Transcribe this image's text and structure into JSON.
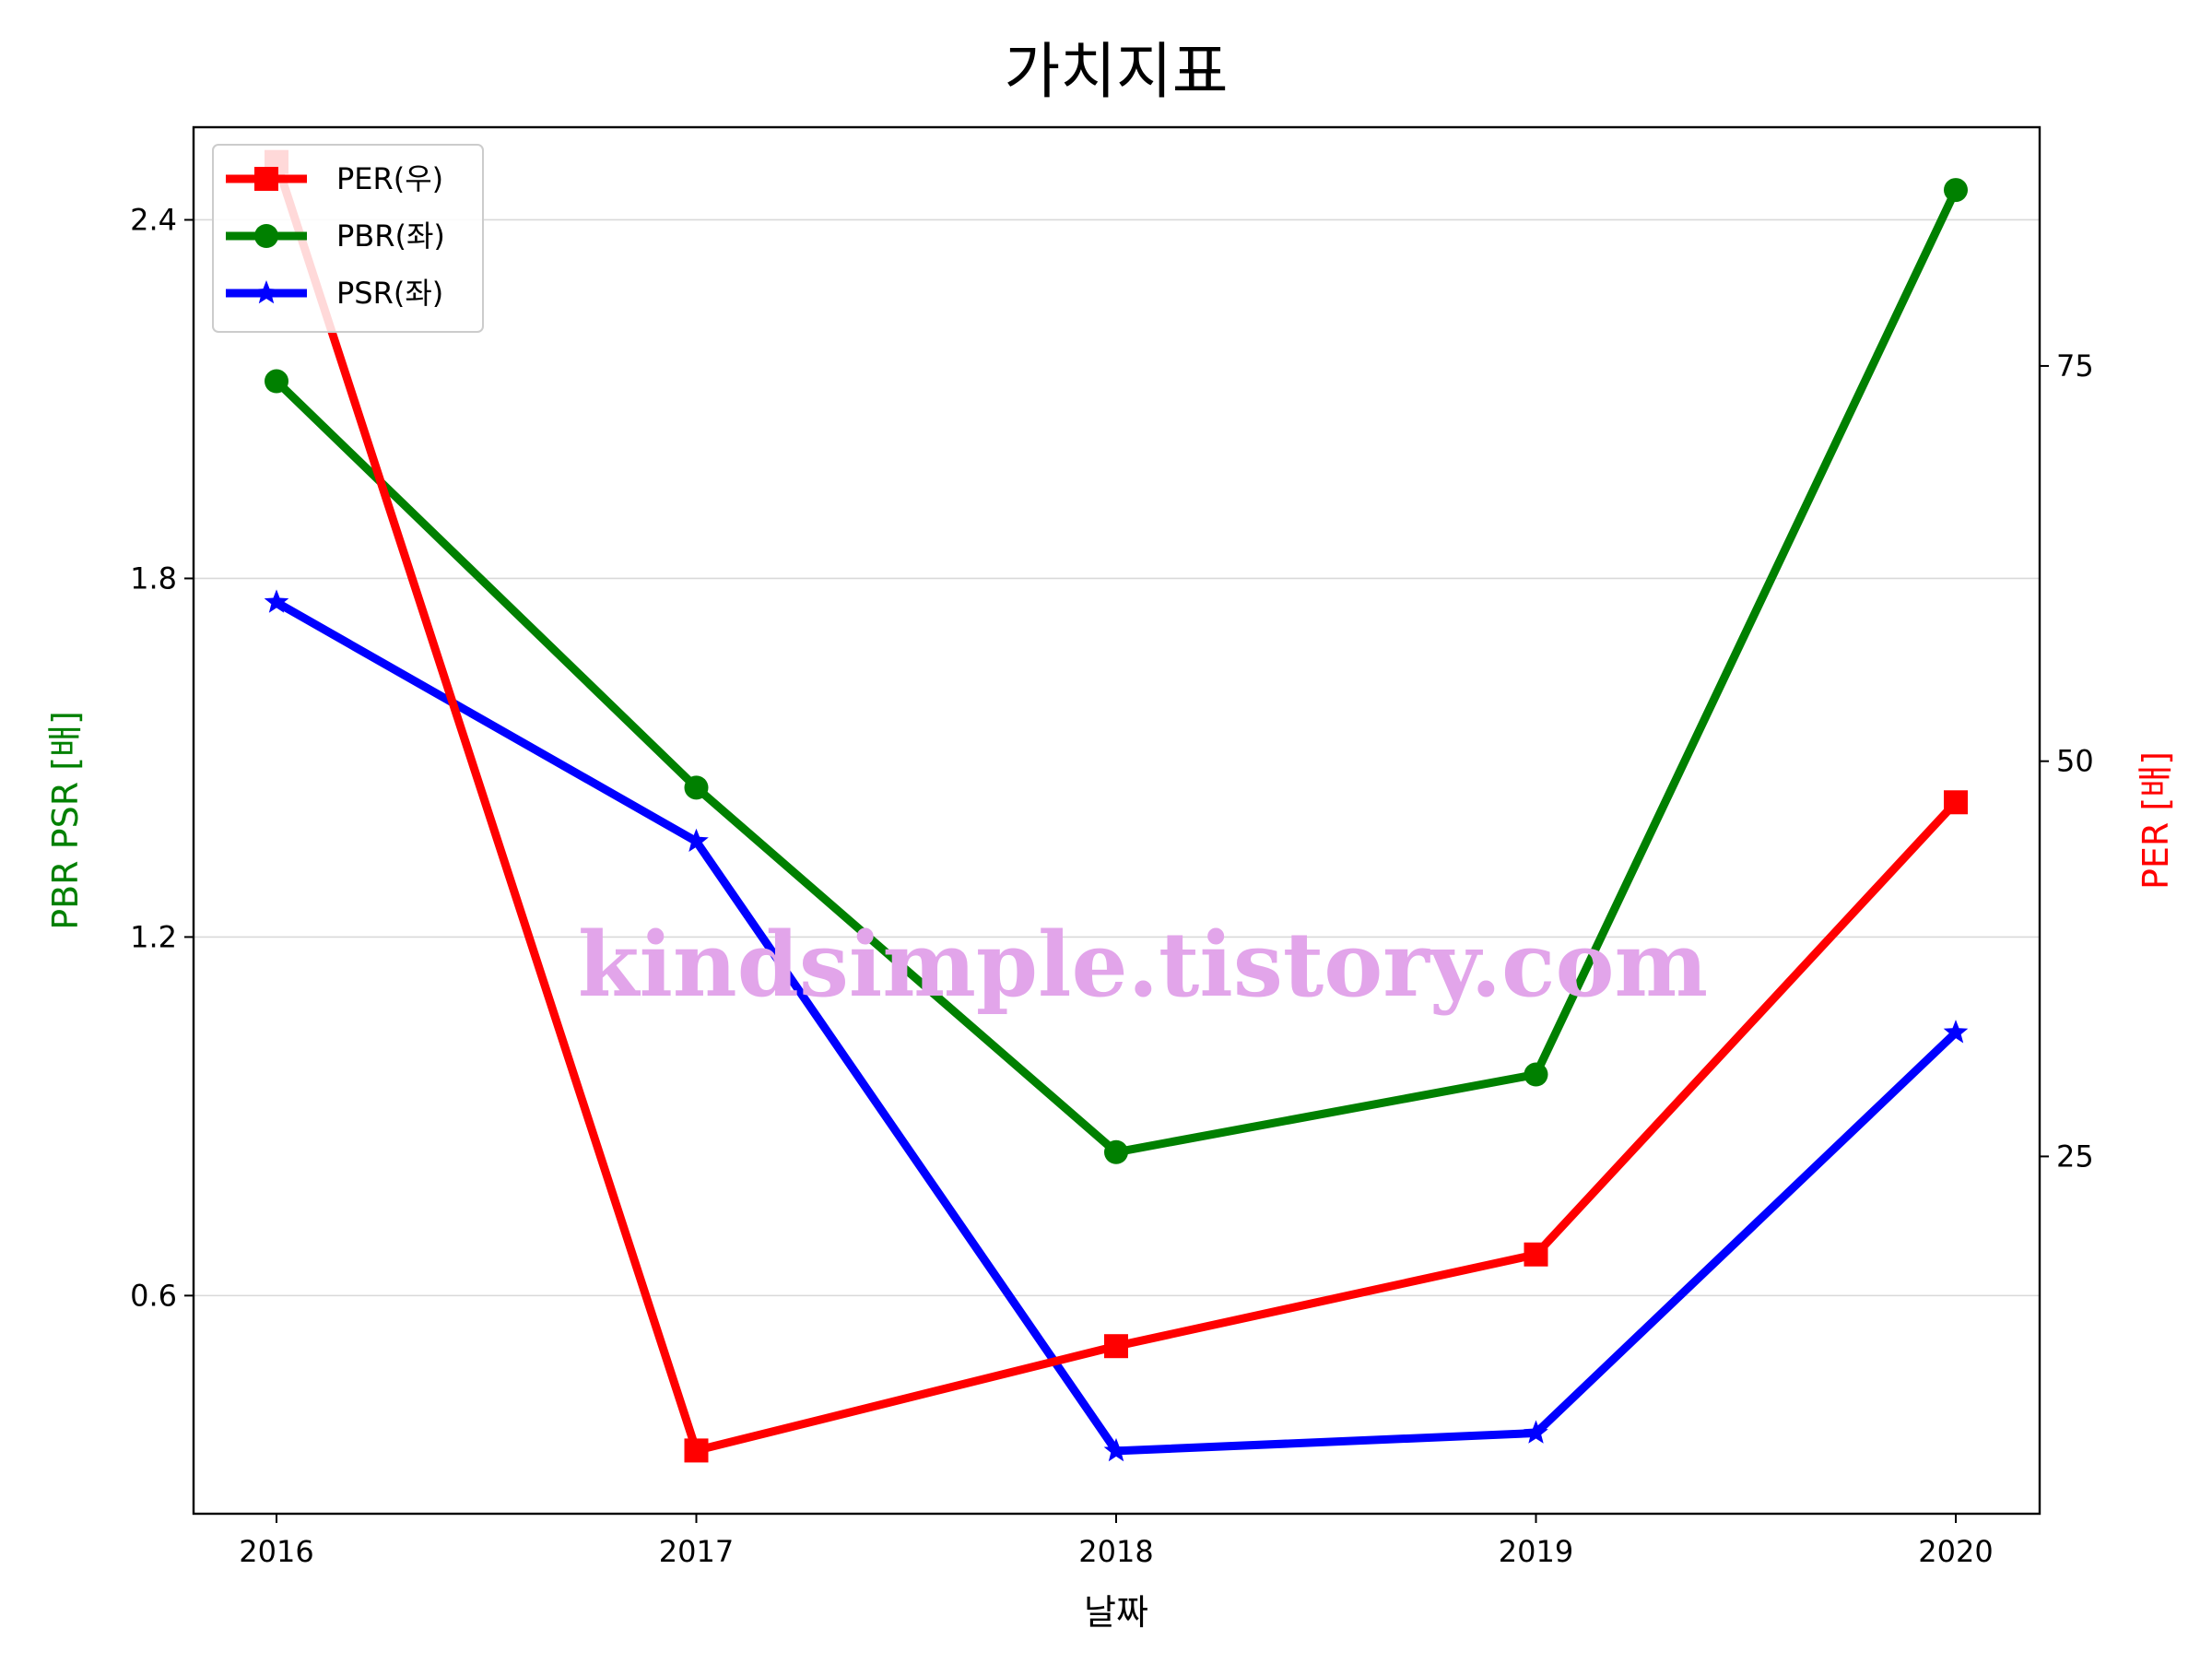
{
  "chart_data": {
    "type": "line",
    "title": "가치지표",
    "xlabel": "날짜",
    "ylabel_left": "PBR PSR [배]",
    "ylabel_right": "PER [배]",
    "categories": [
      "2016",
      "2017",
      "2018",
      "2019",
      "2020"
    ],
    "y_left": {
      "ticks": [
        0.6,
        1.2,
        1.8,
        2.4
      ],
      "tick_labels": [
        "0.6",
        "1.2",
        "1.8",
        "2.4"
      ],
      "range": [
        0.235,
        2.555
      ]
    },
    "y_right": {
      "ticks": [
        25,
        50,
        75
      ],
      "tick_labels": [
        "25",
        "50",
        "75"
      ],
      "range": [
        2.4,
        90.1
      ]
    },
    "grid": "horizontal",
    "legend_position": "upper-left",
    "series": [
      {
        "name": "PER(우)",
        "axis": "right",
        "marker": "square",
        "color": "#ff0000",
        "values": [
          87.9,
          6.4,
          13.0,
          18.8,
          47.4
        ]
      },
      {
        "name": "PBR(좌)",
        "axis": "left",
        "marker": "circle",
        "color": "#008000",
        "values": [
          2.13,
          1.45,
          0.84,
          0.97,
          2.45
        ]
      },
      {
        "name": "PSR(좌)",
        "axis": "left",
        "marker": "star",
        "color": "#0000ff",
        "values": [
          1.76,
          1.36,
          0.34,
          0.37,
          1.04
        ]
      }
    ],
    "watermark": "kindsimple.tistory.com"
  }
}
